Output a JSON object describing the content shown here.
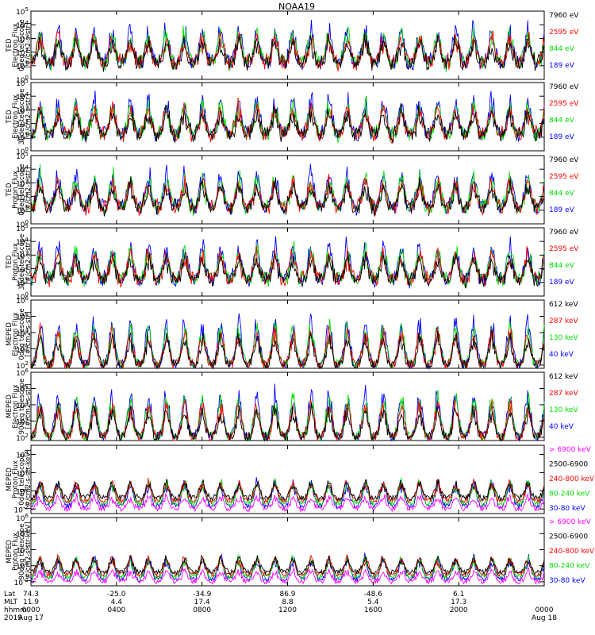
{
  "title": "NOAA19",
  "panels": [
    {
      "ylabel": [
        "TED",
        "Electron Flux",
        "0deg telescope",
        "[#/cm2-s-str]"
      ],
      "ytick_exps": [
        0,
        1,
        2,
        3,
        4,
        5
      ],
      "ytick_label_prefix": "10",
      "legend": [
        {
          "label": "7960 eV",
          "color": "#000000"
        },
        {
          "label": "2595 eV",
          "color": "#ff0000"
        },
        {
          "label": "844 eV",
          "color": "#00dd00"
        },
        {
          "label": "189 eV",
          "color": "#0000ff"
        }
      ]
    },
    {
      "ylabel": [
        "TED",
        "Electron Flux",
        "30deg telescope",
        "[#/cm2-s-str]"
      ],
      "ytick_exps": [
        0,
        1,
        2,
        3,
        4,
        5
      ],
      "ytick_label_prefix": "10",
      "legend": [
        {
          "label": "7960 eV",
          "color": "#000000"
        },
        {
          "label": "2595 eV",
          "color": "#ff0000"
        },
        {
          "label": "844 eV",
          "color": "#00dd00"
        },
        {
          "label": "189 eV",
          "color": "#0000ff"
        }
      ]
    },
    {
      "ylabel": [
        "TED",
        "Proton Flux",
        "0deg telescope",
        "[#/cm2-s-str]"
      ],
      "ytick_exps": [
        0,
        1,
        2,
        3,
        4,
        5
      ],
      "ytick_label_prefix": "10",
      "legend": [
        {
          "label": "7960 eV",
          "color": "#000000"
        },
        {
          "label": "2595 eV",
          "color": "#ff0000"
        },
        {
          "label": "844 eV",
          "color": "#00dd00"
        },
        {
          "label": "189 eV",
          "color": "#0000ff"
        }
      ]
    },
    {
      "ylabel": [
        "TED",
        "Proton Flux",
        "30deg telescope",
        "[#/cm2-s-str]"
      ],
      "ytick_exps": [
        0,
        1,
        2,
        3,
        4,
        5
      ],
      "ytick_label_prefix": "10",
      "legend": [
        {
          "label": "7960 eV",
          "color": "#000000"
        },
        {
          "label": "2595 eV",
          "color": "#ff0000"
        },
        {
          "label": "844 eV",
          "color": "#00dd00"
        },
        {
          "label": "189 eV",
          "color": "#0000ff"
        }
      ]
    },
    {
      "ylabel": [
        "MEPED",
        "Electron Flux",
        "0deg telescope",
        "[#/cm2-s-str]"
      ],
      "ytick_exps": [
        2,
        3,
        4,
        5,
        6
      ],
      "ytick_label_prefix": "10",
      "legend": [
        {
          "label": "612 keV",
          "color": "#000000"
        },
        {
          "label": "287 keV",
          "color": "#ff0000"
        },
        {
          "label": "130 keV",
          "color": "#00dd00"
        },
        {
          "label": "40 keV",
          "color": "#0000ff"
        }
      ]
    },
    {
      "ylabel": [
        "MEPED",
        "Electron Flux",
        "90deg telescope",
        "[#/cm2-s-str]"
      ],
      "ytick_exps": [
        2,
        3,
        4,
        5,
        6
      ],
      "ytick_label_prefix": "10",
      "legend": [
        {
          "label": "612 keV",
          "color": "#000000"
        },
        {
          "label": "287 keV",
          "color": "#ff0000"
        },
        {
          "label": "130 keV",
          "color": "#00dd00"
        },
        {
          "label": "40 keV",
          "color": "#0000ff"
        }
      ]
    },
    {
      "ylabel": [
        "MEPED",
        "Proton Flux",
        "0deg telescope",
        "[#/cm2-s-str-keV]"
      ],
      "ytick_exps": [
        -2,
        0,
        2,
        4
      ],
      "ytick_label_prefix": "10",
      "legend": [
        {
          "label": "> 6900 keV",
          "color": "#ff00ff"
        },
        {
          "label": "2500-6900",
          "color": "#000000"
        },
        {
          "label": "240-800 keV",
          "color": "#ff0000"
        },
        {
          "label": "80-240 keV",
          "color": "#00dd00"
        },
        {
          "label": "30-80 keV",
          "color": "#0000ff"
        }
      ]
    },
    {
      "ylabel": [
        "MEPED",
        "Proton Flux",
        "90deg telescope",
        "[#/cm2-s-str-keV]"
      ],
      "ytick_exps": [
        -2,
        0,
        2,
        4,
        6
      ],
      "ytick_label_prefix": "10",
      "legend": [
        {
          "label": "> 6900 keV",
          "color": "#ff00ff"
        },
        {
          "label": "2500-6900",
          "color": "#000000"
        },
        {
          "label": "240-800 keV",
          "color": "#ff0000"
        },
        {
          "label": "80-240 keV",
          "color": "#00dd00"
        },
        {
          "label": "30-80 keV",
          "color": "#0000ff"
        }
      ]
    }
  ],
  "xaxis": {
    "row_labels": [
      "Lat",
      "MLT",
      "hhmm",
      "2019"
    ],
    "columns": [
      {
        "lat": "74.3",
        "mlt": "11.9",
        "hhmm": "0000",
        "date": "Aug 17"
      },
      {
        "lat": "-25.0",
        "mlt": "4.4",
        "hhmm": "0400",
        "date": ""
      },
      {
        "lat": "-34.9",
        "mlt": "17.4",
        "hhmm": "0800",
        "date": ""
      },
      {
        "lat": "86.9",
        "mlt": "8.8",
        "hhmm": "1200",
        "date": ""
      },
      {
        "lat": "-48.6",
        "mlt": "5.4",
        "hhmm": "1600",
        "date": ""
      },
      {
        "lat": "6.1",
        "mlt": "17.3",
        "hhmm": "2000",
        "date": ""
      },
      {
        "lat": "",
        "mlt": "",
        "hhmm": "0000",
        "date": "Aug 18"
      }
    ]
  },
  "chart_data": {
    "type": "line",
    "title": "NOAA19",
    "x_range_hours": [
      0,
      24
    ],
    "y_scale": "log",
    "panel_yranges_log10": [
      [
        0,
        5
      ],
      [
        0,
        5
      ],
      [
        0,
        5
      ],
      [
        0,
        5
      ],
      [
        1.8,
        6
      ],
      [
        1.8,
        6
      ],
      [
        -2.5,
        5
      ],
      [
        -2.5,
        6
      ]
    ],
    "orbit_period_hours": 1.69,
    "note_series": "Each panel shows 4-5 energy-channel flux time series over 24 h (log scale)"
  }
}
